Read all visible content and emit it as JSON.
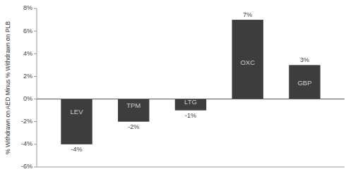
{
  "chart_data": {
    "type": "bar",
    "ylabel": "% Withdrawn on AED Minus % Withdrawn on PLB",
    "categories": [
      "LEV",
      "TPM",
      "LTG",
      "OXC",
      "GBP"
    ],
    "values": [
      -4,
      -2,
      -1,
      7,
      3
    ],
    "value_labels": [
      "-4%",
      "-2%",
      "-1%",
      "7%",
      "3%"
    ],
    "color": "#3d3d3d",
    "ylim": [
      -6,
      8
    ],
    "yticks": [
      {
        "value": -6,
        "label": "-6%"
      },
      {
        "value": -4,
        "label": "-4%"
      },
      {
        "value": -2,
        "label": "-2%"
      },
      {
        "value": 0,
        "label": "0%"
      },
      {
        "value": 2,
        "label": "2%"
      },
      {
        "value": 4,
        "label": "4%"
      },
      {
        "value": 6,
        "label": "6%"
      },
      {
        "value": 8,
        "label": "8%"
      }
    ],
    "grid": false,
    "data_labels": true,
    "tick_labels": "y"
  }
}
